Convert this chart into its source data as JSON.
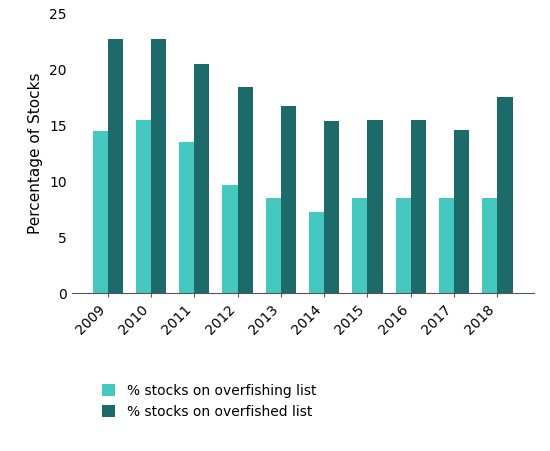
{
  "years": [
    2009,
    2010,
    2011,
    2012,
    2013,
    2014,
    2015,
    2016,
    2017,
    2018
  ],
  "overfishing": [
    14.5,
    15.5,
    13.5,
    9.7,
    8.5,
    7.3,
    8.5,
    8.5,
    8.5,
    8.5
  ],
  "overfished": [
    22.7,
    22.7,
    20.5,
    18.4,
    16.7,
    15.4,
    15.5,
    15.5,
    14.6,
    17.5
  ],
  "color_overfishing": "#45C8C0",
  "color_overfished": "#1C6B6A",
  "ylabel": "Percentage of Stocks",
  "ylim": [
    0,
    25
  ],
  "yticks": [
    0,
    5,
    10,
    15,
    20,
    25
  ],
  "legend_overfishing": "% stocks on overfishing list",
  "legend_overfished": "% stocks on overfished list",
  "bar_width": 0.35,
  "background_color": "#ffffff",
  "tick_label_fontsize": 10,
  "ylabel_fontsize": 11,
  "legend_fontsize": 10
}
